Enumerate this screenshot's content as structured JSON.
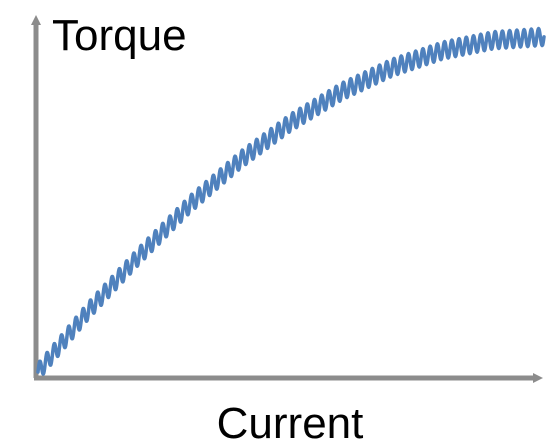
{
  "chart_data": {
    "type": "line",
    "xlabel": "Current",
    "ylabel": "Torque",
    "title": "",
    "xlim": [
      0,
      1
    ],
    "ylim": [
      0,
      1
    ],
    "grid": false,
    "legend": "none",
    "ticks": "none",
    "series": [
      {
        "x": [
          0,
          0.1,
          0.2,
          0.3,
          0.4,
          0.5,
          0.6,
          0.7,
          0.8,
          0.9,
          1.0
        ],
        "y": [
          0.0,
          0.18,
          0.34,
          0.49,
          0.62,
          0.73,
          0.82,
          0.89,
          0.94,
          0.97,
          0.98
        ],
        "ripple_amplitude": 0.025,
        "ripple_cycles": 70,
        "color": "#4f81bd"
      }
    ],
    "colors": {
      "axis": "#8c8c8c",
      "line": "#4f81bd"
    }
  }
}
